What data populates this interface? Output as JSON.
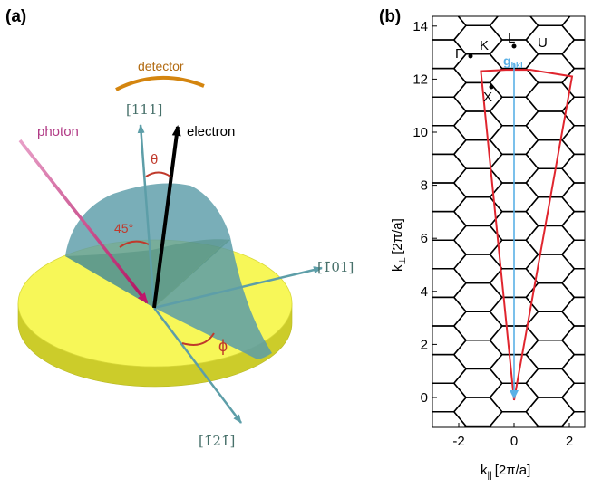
{
  "panel_a": {
    "label": "(a)",
    "detector": "detector",
    "photon": "photon",
    "electron": "electron",
    "theta": "θ",
    "angle45": "45°",
    "phi": "ϕ",
    "dir_111": "[111]",
    "dir_101": "[1̄01]",
    "dir_121": "[1̄21̄]",
    "colors": {
      "disk": "#f7f758",
      "quarter": "#5b9ca8",
      "photon": "#c0166b",
      "detector": "#d4850f",
      "axis": "#5d9ea8",
      "angle": "#c0392b"
    }
  },
  "panel_b": {
    "label": "(b)",
    "x_ticks": [
      "-2",
      "0",
      "2"
    ],
    "y_ticks": [
      "0",
      "2",
      "4",
      "6",
      "8",
      "10",
      "12",
      "14"
    ],
    "x_axis_label": "k",
    "x_axis_sub": "||",
    "x_axis_unit": "[2π/a]",
    "y_axis_label": "k",
    "y_axis_sub": "⊥",
    "y_axis_unit": "[2π/a]",
    "points": {
      "gamma": "Γ",
      "K": "K",
      "L": "L",
      "U": "U",
      "X": "X"
    },
    "g_label": "g",
    "g_sub": "hkl",
    "colors": {
      "grid": "#000000",
      "wedge": "#e0252e",
      "vector": "#5ab0e6"
    }
  }
}
